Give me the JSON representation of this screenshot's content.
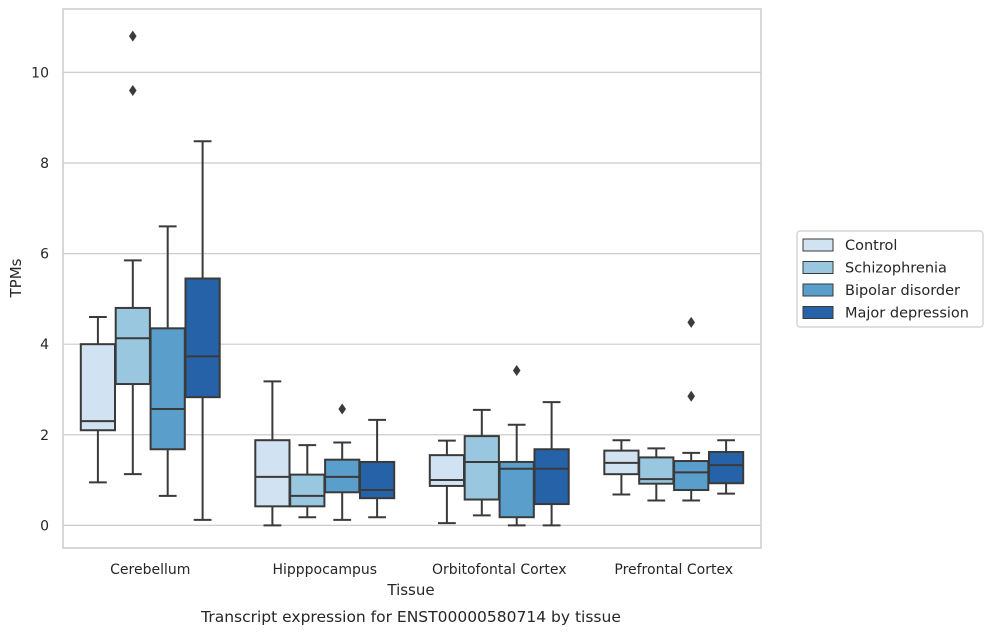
{
  "chart_data": {
    "type": "box",
    "title": "Transcript expression for ENST00000580714 by tissue",
    "xlabel": "Tissue",
    "ylabel": "TPMs",
    "ylim": [
      -0.5,
      11.4
    ],
    "yticks": [
      0,
      2,
      4,
      6,
      8,
      10
    ],
    "grid": true,
    "legend_position": "right",
    "categories": [
      "Cerebellum",
      "Hipppocampus",
      "Orbitofontal Cortex",
      "Prefrontal Cortex"
    ],
    "series": [
      {
        "name": "Control",
        "color": "#d1e2f2",
        "boxes": [
          {
            "whislo": 0.95,
            "q1": 2.1,
            "med": 2.3,
            "q3": 4.0,
            "whishi": 4.6,
            "fliers": []
          },
          {
            "whislo": 0.0,
            "q1": 0.42,
            "med": 1.07,
            "q3": 1.88,
            "whishi": 3.18,
            "fliers": []
          },
          {
            "whislo": 0.05,
            "q1": 0.87,
            "med": 1.0,
            "q3": 1.55,
            "whishi": 1.87,
            "fliers": []
          },
          {
            "whislo": 0.68,
            "q1": 1.13,
            "med": 1.38,
            "q3": 1.65,
            "whishi": 1.88,
            "fliers": []
          }
        ]
      },
      {
        "name": "Schizophrenia",
        "color": "#9ac7e0",
        "boxes": [
          {
            "whislo": 1.13,
            "q1": 3.12,
            "med": 4.13,
            "q3": 4.8,
            "whishi": 5.85,
            "fliers": [
              9.6,
              10.8
            ]
          },
          {
            "whislo": 0.18,
            "q1": 0.42,
            "med": 0.65,
            "q3": 1.12,
            "whishi": 1.77,
            "fliers": []
          },
          {
            "whislo": 0.22,
            "q1": 0.57,
            "med": 1.4,
            "q3": 1.97,
            "whishi": 2.55,
            "fliers": []
          },
          {
            "whislo": 0.55,
            "q1": 0.92,
            "med": 1.02,
            "q3": 1.5,
            "whishi": 1.7,
            "fliers": []
          }
        ]
      },
      {
        "name": "Bipolar disorder",
        "color": "#5a9ecb",
        "boxes": [
          {
            "whislo": 0.65,
            "q1": 1.68,
            "med": 2.57,
            "q3": 4.35,
            "whishi": 6.6,
            "fliers": []
          },
          {
            "whislo": 0.12,
            "q1": 0.73,
            "med": 1.07,
            "q3": 1.45,
            "whishi": 1.83,
            "fliers": [
              2.57
            ]
          },
          {
            "whislo": 0.0,
            "q1": 0.18,
            "med": 1.25,
            "q3": 1.4,
            "whishi": 2.22,
            "fliers": [
              3.42
            ]
          },
          {
            "whislo": 0.55,
            "q1": 0.78,
            "med": 1.17,
            "q3": 1.42,
            "whishi": 1.6,
            "fliers": [
              2.85,
              4.48
            ]
          }
        ]
      },
      {
        "name": "Major depression",
        "color": "#2662a8",
        "boxes": [
          {
            "whislo": 0.12,
            "q1": 2.83,
            "med": 3.73,
            "q3": 5.45,
            "whishi": 8.48,
            "fliers": []
          },
          {
            "whislo": 0.18,
            "q1": 0.6,
            "med": 0.78,
            "q3": 1.4,
            "whishi": 2.33,
            "fliers": []
          },
          {
            "whislo": 0.0,
            "q1": 0.47,
            "med": 1.25,
            "q3": 1.68,
            "whishi": 2.72,
            "fliers": []
          },
          {
            "whislo": 0.7,
            "q1": 0.93,
            "med": 1.33,
            "q3": 1.62,
            "whishi": 1.88,
            "fliers": []
          }
        ]
      }
    ]
  }
}
